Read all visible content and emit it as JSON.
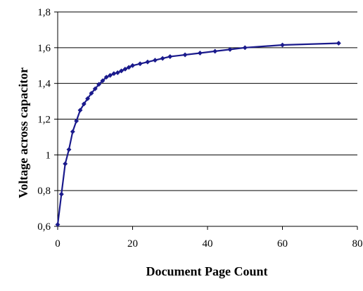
{
  "chart_data": {
    "type": "line",
    "title": "",
    "xlabel": "Document Page Count",
    "ylabel": "Voltage across capacitor",
    "xlim": [
      0,
      80
    ],
    "ylim": [
      0.6,
      1.8
    ],
    "x_ticks": [
      0,
      20,
      40,
      60,
      80
    ],
    "y_ticks": [
      0.6,
      0.8,
      1.0,
      1.2,
      1.4,
      1.6,
      1.8
    ],
    "x_tick_labels": [
      "0",
      "20",
      "40",
      "60",
      "80"
    ],
    "y_tick_labels": [
      "0,6",
      "0,8",
      "1",
      "1,2",
      "1,4",
      "1,6",
      "1,8"
    ],
    "grid": "horizontal",
    "legend": "none",
    "series": [
      {
        "color": "#1a1a8c",
        "marker": "diamond",
        "x": [
          0,
          1,
          2,
          3,
          4,
          5,
          6,
          7,
          8,
          9,
          10,
          11,
          12,
          13,
          14,
          15,
          16,
          17,
          18,
          19,
          20,
          22,
          24,
          26,
          28,
          30,
          34,
          38,
          42,
          46,
          50,
          60,
          75
        ],
        "y": [
          0.61,
          0.78,
          0.95,
          1.03,
          1.13,
          1.19,
          1.25,
          1.285,
          1.315,
          1.345,
          1.37,
          1.395,
          1.415,
          1.435,
          1.445,
          1.455,
          1.46,
          1.47,
          1.48,
          1.49,
          1.5,
          1.51,
          1.52,
          1.53,
          1.54,
          1.55,
          1.56,
          1.57,
          1.58,
          1.59,
          1.6,
          1.615,
          1.625
        ]
      }
    ]
  }
}
